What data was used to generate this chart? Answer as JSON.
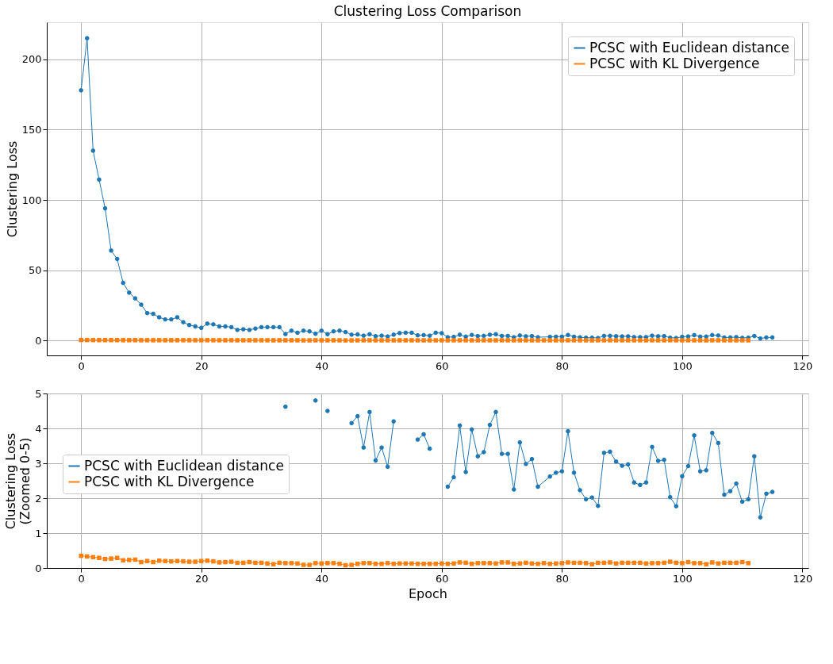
{
  "chart_data": [
    {
      "type": "line",
      "title": "Clustering Loss Comparison",
      "ylabel": "Clustering Loss",
      "xlim": [
        -5.7,
        121
      ],
      "xticks": [
        0,
        20,
        40,
        60,
        80,
        100,
        120
      ],
      "ylim": [
        -10.6,
        226.4
      ],
      "yticks": [
        0,
        50,
        100,
        150,
        200
      ],
      "grid": true,
      "legend": "top right",
      "line_style": "solid",
      "series": [
        {
          "name": "PCSC with Euclidean distance",
          "color": "#1f77b4",
          "marker": "circle",
          "x": [
            0,
            1,
            2,
            3,
            4,
            5,
            6,
            7,
            8,
            9,
            10,
            11,
            12,
            13,
            14,
            15,
            16,
            17,
            18,
            19,
            20,
            21,
            22,
            23,
            24,
            25,
            26,
            27,
            28,
            29,
            30,
            31,
            32,
            33,
            34,
            35,
            36,
            37,
            38,
            39,
            40,
            41,
            42,
            43,
            44,
            45,
            46,
            47,
            48,
            49,
            50,
            51,
            52,
            53,
            54,
            55,
            56,
            57,
            58,
            59,
            60,
            61,
            62,
            63,
            64,
            65,
            66,
            67,
            68,
            69,
            70,
            71,
            72,
            73,
            74,
            75,
            76,
            78,
            79,
            80,
            81,
            82,
            83,
            84,
            85,
            86,
            87,
            88,
            89,
            90,
            91,
            92,
            93,
            94,
            95,
            96,
            97,
            98,
            99,
            100,
            101,
            102,
            103,
            104,
            105,
            106,
            107,
            108,
            109,
            110,
            111,
            112,
            113,
            114,
            115
          ],
          "values": [
            178,
            215,
            135,
            114.5,
            94,
            64,
            58,
            41,
            34,
            30,
            25.5,
            19.5,
            19,
            16.5,
            15,
            15,
            16.5,
            13,
            11,
            10,
            9,
            12,
            11.5,
            10,
            10,
            9.5,
            7.5,
            8,
            7.5,
            8.5,
            9.5,
            9.5,
            9.5,
            9.5,
            4.62,
            7,
            5.5,
            7,
            6.5,
            4.8,
            7,
            4.5,
            6.5,
            7,
            6,
            4.15,
            4.35,
            3.45,
            4.47,
            3.08,
            3.45,
            2.9,
            4.2,
            5.3,
            5.5,
            5.5,
            3.68,
            3.83,
            3.42,
            5.5,
            5.2,
            2.33,
            2.6,
            4.08,
            2.75,
            3.97,
            3.2,
            3.32,
            4.1,
            4.47,
            3.27,
            3.27,
            2.25,
            3.6,
            2.98,
            3.12,
            2.33,
            2.62,
            2.73,
            2.77,
            3.92,
            2.73,
            2.23,
            1.97,
            2.02,
            1.78,
            3.3,
            3.33,
            3.05,
            2.93,
            2.97,
            2.45,
            2.38,
            2.45,
            3.47,
            3.07,
            3.1,
            2.03,
            1.77,
            2.63,
            2.92,
            3.8,
            2.77,
            2.8,
            3.87,
            3.58,
            2.1,
            2.2,
            2.42,
            1.9,
            1.97,
            3.2,
            1.45,
            2.13,
            2.18
          ]
        },
        {
          "name": "PCSC with KL Divergence",
          "color": "#ff7f0e",
          "marker": "square",
          "x": [
            0,
            1,
            2,
            3,
            4,
            5,
            6,
            7,
            8,
            9,
            10,
            11,
            12,
            13,
            14,
            15,
            16,
            17,
            18,
            19,
            20,
            21,
            22,
            23,
            24,
            25,
            26,
            27,
            28,
            29,
            30,
            31,
            32,
            33,
            34,
            35,
            36,
            37,
            38,
            39,
            40,
            41,
            42,
            43,
            44,
            45,
            46,
            47,
            48,
            49,
            50,
            51,
            52,
            53,
            54,
            55,
            56,
            57,
            58,
            59,
            60,
            61,
            62,
            63,
            64,
            65,
            66,
            67,
            68,
            69,
            70,
            71,
            72,
            73,
            74,
            75,
            76,
            77,
            78,
            79,
            80,
            81,
            82,
            83,
            84,
            85,
            86,
            87,
            88,
            89,
            90,
            91,
            92,
            93,
            94,
            95,
            96,
            97,
            98,
            99,
            100,
            101,
            102,
            103,
            104,
            105,
            106,
            107,
            108,
            109,
            110,
            111
          ],
          "values": [
            0.35,
            0.33,
            0.31,
            0.29,
            0.26,
            0.27,
            0.29,
            0.22,
            0.23,
            0.24,
            0.17,
            0.2,
            0.17,
            0.21,
            0.2,
            0.19,
            0.2,
            0.19,
            0.18,
            0.18,
            0.2,
            0.21,
            0.19,
            0.16,
            0.17,
            0.18,
            0.15,
            0.15,
            0.17,
            0.15,
            0.15,
            0.13,
            0.11,
            0.15,
            0.14,
            0.14,
            0.13,
            0.09,
            0.09,
            0.14,
            0.13,
            0.14,
            0.14,
            0.12,
            0.08,
            0.09,
            0.12,
            0.14,
            0.14,
            0.12,
            0.12,
            0.14,
            0.12,
            0.13,
            0.13,
            0.13,
            0.12,
            0.12,
            0.12,
            0.12,
            0.13,
            0.12,
            0.13,
            0.16,
            0.15,
            0.12,
            0.14,
            0.14,
            0.14,
            0.13,
            0.16,
            0.16,
            0.12,
            0.13,
            0.15,
            0.13,
            0.12,
            0.14,
            0.12,
            0.13,
            0.14,
            0.16,
            0.15,
            0.15,
            0.14,
            0.11,
            0.15,
            0.15,
            0.16,
            0.13,
            0.15,
            0.15,
            0.15,
            0.15,
            0.13,
            0.14,
            0.14,
            0.15,
            0.18,
            0.15,
            0.14,
            0.17,
            0.14,
            0.14,
            0.11,
            0.16,
            0.13,
            0.15,
            0.15,
            0.15,
            0.17,
            0.14
          ]
        }
      ]
    },
    {
      "type": "line",
      "xlabel": "Epoch",
      "ylabel": "Clustering Loss\n(Zoomed 0-5)",
      "xlim": [
        -5.7,
        121
      ],
      "xticks": [
        0,
        20,
        40,
        60,
        80,
        100,
        120
      ],
      "ylim": [
        0,
        5
      ],
      "yticks": [
        0,
        1,
        2,
        3,
        4,
        5
      ],
      "grid": true,
      "legend": "left",
      "line_style": "solid",
      "series": [
        {
          "name": "PCSC with Euclidean distance",
          "color": "#1f77b4",
          "marker": "circle",
          "x": [
            34,
            35,
            36,
            37,
            38,
            39,
            40,
            41,
            42,
            43,
            44,
            45,
            46,
            47,
            48,
            49,
            50,
            51,
            52,
            53,
            54,
            55,
            56,
            57,
            58,
            59,
            60,
            61,
            62,
            63,
            64,
            65,
            66,
            67,
            68,
            69,
            70,
            71,
            72,
            73,
            74,
            75,
            76,
            78,
            79,
            80,
            81,
            82,
            83,
            84,
            85,
            86,
            87,
            88,
            89,
            90,
            91,
            92,
            93,
            94,
            95,
            96,
            97,
            98,
            99,
            100,
            101,
            102,
            103,
            104,
            105,
            106,
            107,
            108,
            109,
            110,
            111,
            112,
            113,
            114,
            115
          ],
          "values": [
            4.62,
            null,
            null,
            null,
            null,
            4.8,
            null,
            4.5,
            null,
            null,
            null,
            4.15,
            4.35,
            3.45,
            4.47,
            3.08,
            3.45,
            2.9,
            4.2,
            null,
            null,
            null,
            3.68,
            3.83,
            3.42,
            null,
            null,
            2.33,
            2.6,
            4.08,
            2.75,
            3.97,
            3.2,
            3.32,
            4.1,
            4.47,
            3.27,
            3.27,
            2.25,
            3.6,
            2.98,
            3.12,
            2.33,
            2.62,
            2.73,
            2.77,
            3.92,
            2.73,
            2.23,
            1.97,
            2.02,
            1.78,
            3.3,
            3.33,
            3.05,
            2.93,
            2.97,
            2.45,
            2.38,
            2.45,
            3.47,
            3.07,
            3.1,
            2.03,
            1.77,
            2.63,
            2.92,
            3.8,
            2.77,
            2.8,
            3.87,
            3.58,
            2.1,
            2.2,
            2.42,
            1.9,
            1.97,
            3.2,
            1.45,
            2.13,
            2.18
          ]
        },
        {
          "name": "PCSC with KL Divergence",
          "color": "#ff7f0e",
          "marker": "square",
          "x": [
            0,
            1,
            2,
            3,
            4,
            5,
            6,
            7,
            8,
            9,
            10,
            11,
            12,
            13,
            14,
            15,
            16,
            17,
            18,
            19,
            20,
            21,
            22,
            23,
            24,
            25,
            26,
            27,
            28,
            29,
            30,
            31,
            32,
            33,
            34,
            35,
            36,
            37,
            38,
            39,
            40,
            41,
            42,
            43,
            44,
            45,
            46,
            47,
            48,
            49,
            50,
            51,
            52,
            53,
            54,
            55,
            56,
            57,
            58,
            59,
            60,
            61,
            62,
            63,
            64,
            65,
            66,
            67,
            68,
            69,
            70,
            71,
            72,
            73,
            74,
            75,
            76,
            77,
            78,
            79,
            80,
            81,
            82,
            83,
            84,
            85,
            86,
            87,
            88,
            89,
            90,
            91,
            92,
            93,
            94,
            95,
            96,
            97,
            98,
            99,
            100,
            101,
            102,
            103,
            104,
            105,
            106,
            107,
            108,
            109,
            110,
            111
          ],
          "values": [
            0.35,
            0.33,
            0.31,
            0.29,
            0.26,
            0.27,
            0.29,
            0.22,
            0.23,
            0.24,
            0.17,
            0.2,
            0.17,
            0.21,
            0.2,
            0.19,
            0.2,
            0.19,
            0.18,
            0.18,
            0.2,
            0.21,
            0.19,
            0.16,
            0.17,
            0.18,
            0.15,
            0.15,
            0.17,
            0.15,
            0.15,
            0.13,
            0.11,
            0.15,
            0.14,
            0.14,
            0.13,
            0.09,
            0.09,
            0.14,
            0.13,
            0.14,
            0.14,
            0.12,
            0.08,
            0.09,
            0.12,
            0.14,
            0.14,
            0.12,
            0.12,
            0.14,
            0.12,
            0.13,
            0.13,
            0.13,
            0.12,
            0.12,
            0.12,
            0.12,
            0.13,
            0.12,
            0.13,
            0.16,
            0.15,
            0.12,
            0.14,
            0.14,
            0.14,
            0.13,
            0.16,
            0.16,
            0.12,
            0.13,
            0.15,
            0.13,
            0.12,
            0.14,
            0.12,
            0.13,
            0.14,
            0.16,
            0.15,
            0.15,
            0.14,
            0.11,
            0.15,
            0.15,
            0.16,
            0.13,
            0.15,
            0.15,
            0.15,
            0.15,
            0.13,
            0.14,
            0.14,
            0.15,
            0.18,
            0.15,
            0.14,
            0.17,
            0.14,
            0.14,
            0.11,
            0.16,
            0.13,
            0.15,
            0.15,
            0.15,
            0.17,
            0.14
          ]
        }
      ]
    }
  ]
}
